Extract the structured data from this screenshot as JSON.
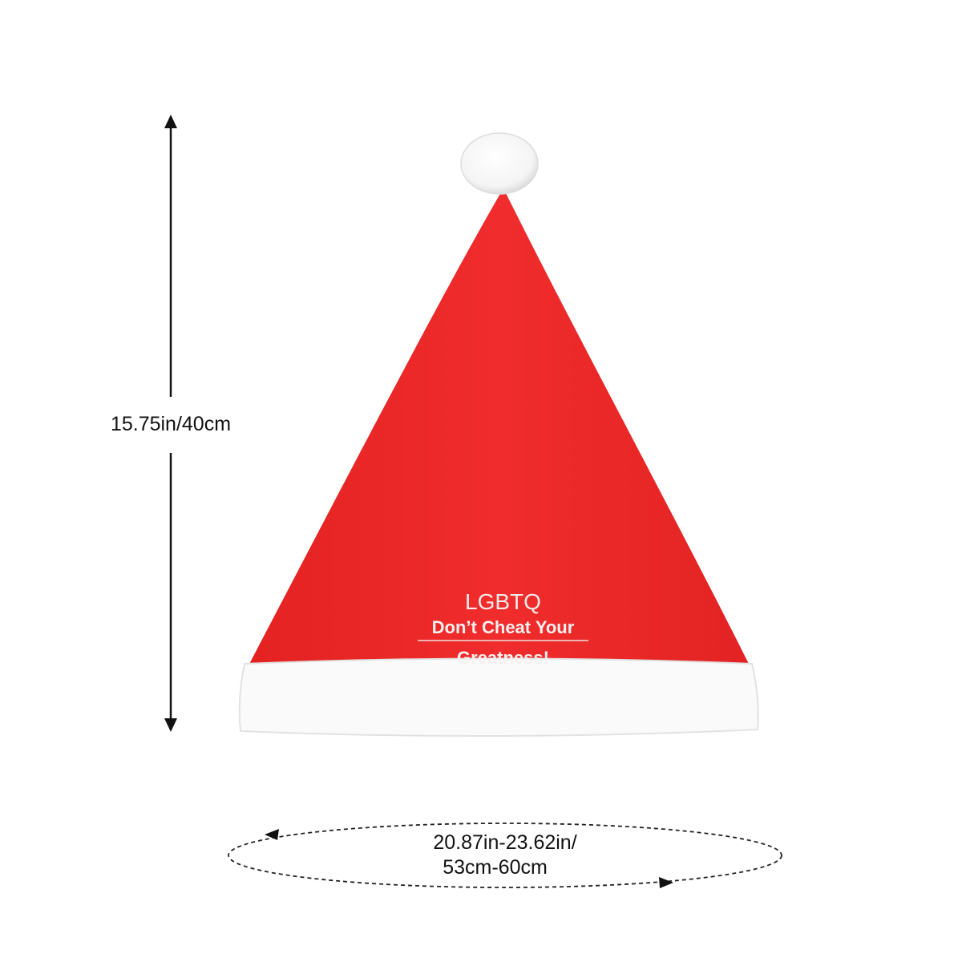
{
  "product": {
    "print": {
      "line1": "LGBTQ",
      "line2": "Don’t Cheat Your",
      "line3": "Greatness!"
    },
    "colors": {
      "hat": "#ee2a2a",
      "trim": "#ffffff"
    }
  },
  "dimensions": {
    "height_label": "15.75in/40cm",
    "circumference_line1": "20.87in-23.62in/",
    "circumference_line2": "53cm-60cm"
  }
}
